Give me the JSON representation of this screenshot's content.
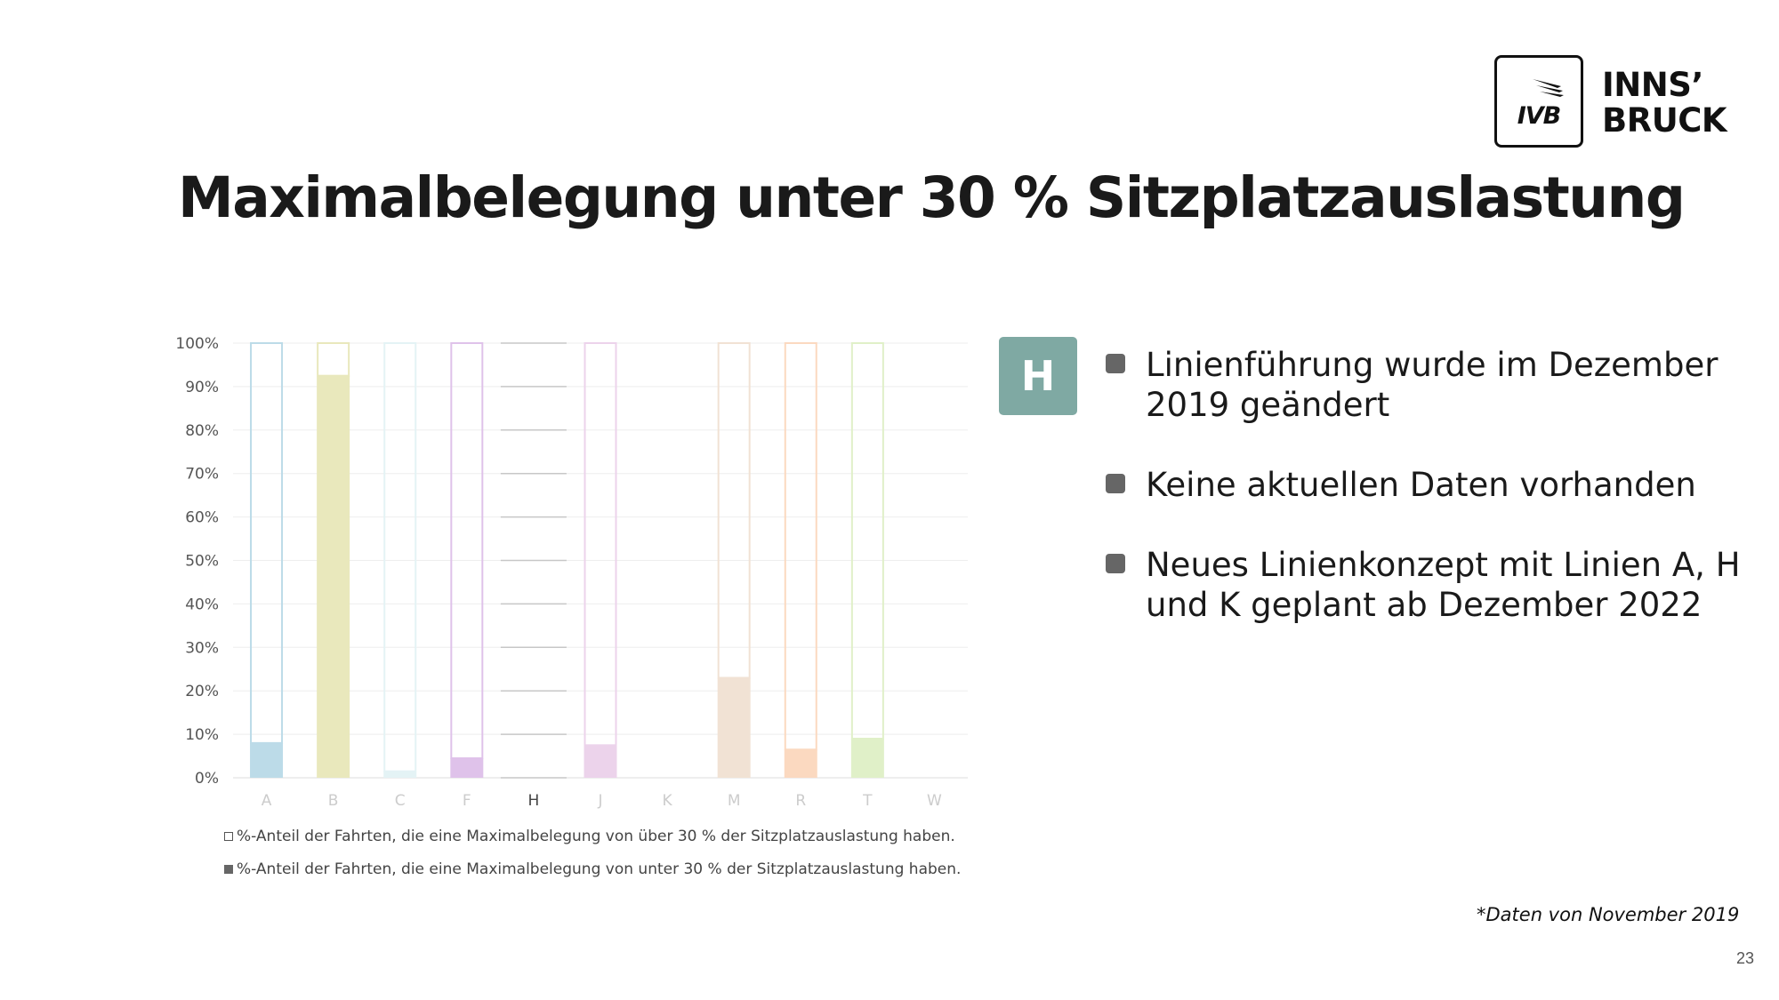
{
  "logo": {
    "brand": "IVB",
    "city_line1": "INNS’",
    "city_line2": "BRUCK"
  },
  "title": "Maximalbelegung unter 30 % Sitzplatzauslastung",
  "chart_data": {
    "type": "bar",
    "stacked": true,
    "categories": [
      "A",
      "B",
      "C",
      "F",
      "H",
      "J",
      "K",
      "M",
      "R",
      "T",
      "W"
    ],
    "highlight_category": "H",
    "y_ticks": [
      "0%",
      "10%",
      "20%",
      "30%",
      "40%",
      "50%",
      "60%",
      "70%",
      "80%",
      "90%",
      "100%"
    ],
    "ylim": [
      0,
      100
    ],
    "grid": true,
    "series": [
      {
        "name": "%-Anteil der Fahrten, die eine Maximalbelegung von unter 30 % der Sitzplatzauslastung haben.",
        "values": [
          8,
          92.5,
          1.5,
          4.5,
          0,
          7.5,
          null,
          23,
          6.5,
          9,
          null
        ]
      },
      {
        "name": "%-Anteil der Fahrten, die eine Maximalbelegung von über 30 % der Sitzplatzauslastung haben.",
        "values": [
          92,
          7.5,
          98.5,
          95.5,
          0,
          92.5,
          null,
          77,
          93.5,
          91,
          null
        ]
      }
    ],
    "colors": [
      "#bcdbe8",
      "#e9e8bc",
      "#e4f3f5",
      "#dfc2ea",
      "#c7c7c7",
      "#ecd3eb",
      "#ffffff",
      "#f1e2d4",
      "#fbd9c0",
      "#e0f0c8",
      "#ffffff"
    ],
    "legend_position": "bottom"
  },
  "badge": "H",
  "bullets": [
    "Linienführung wurde im Dezember 2019 geändert",
    "Keine aktuellen Daten vorhanden",
    "Neues Linienkonzept mit Linien A, H und K geplant ab Dezember 2022"
  ],
  "footnote": "*Daten von November 2019",
  "page_number": "23"
}
